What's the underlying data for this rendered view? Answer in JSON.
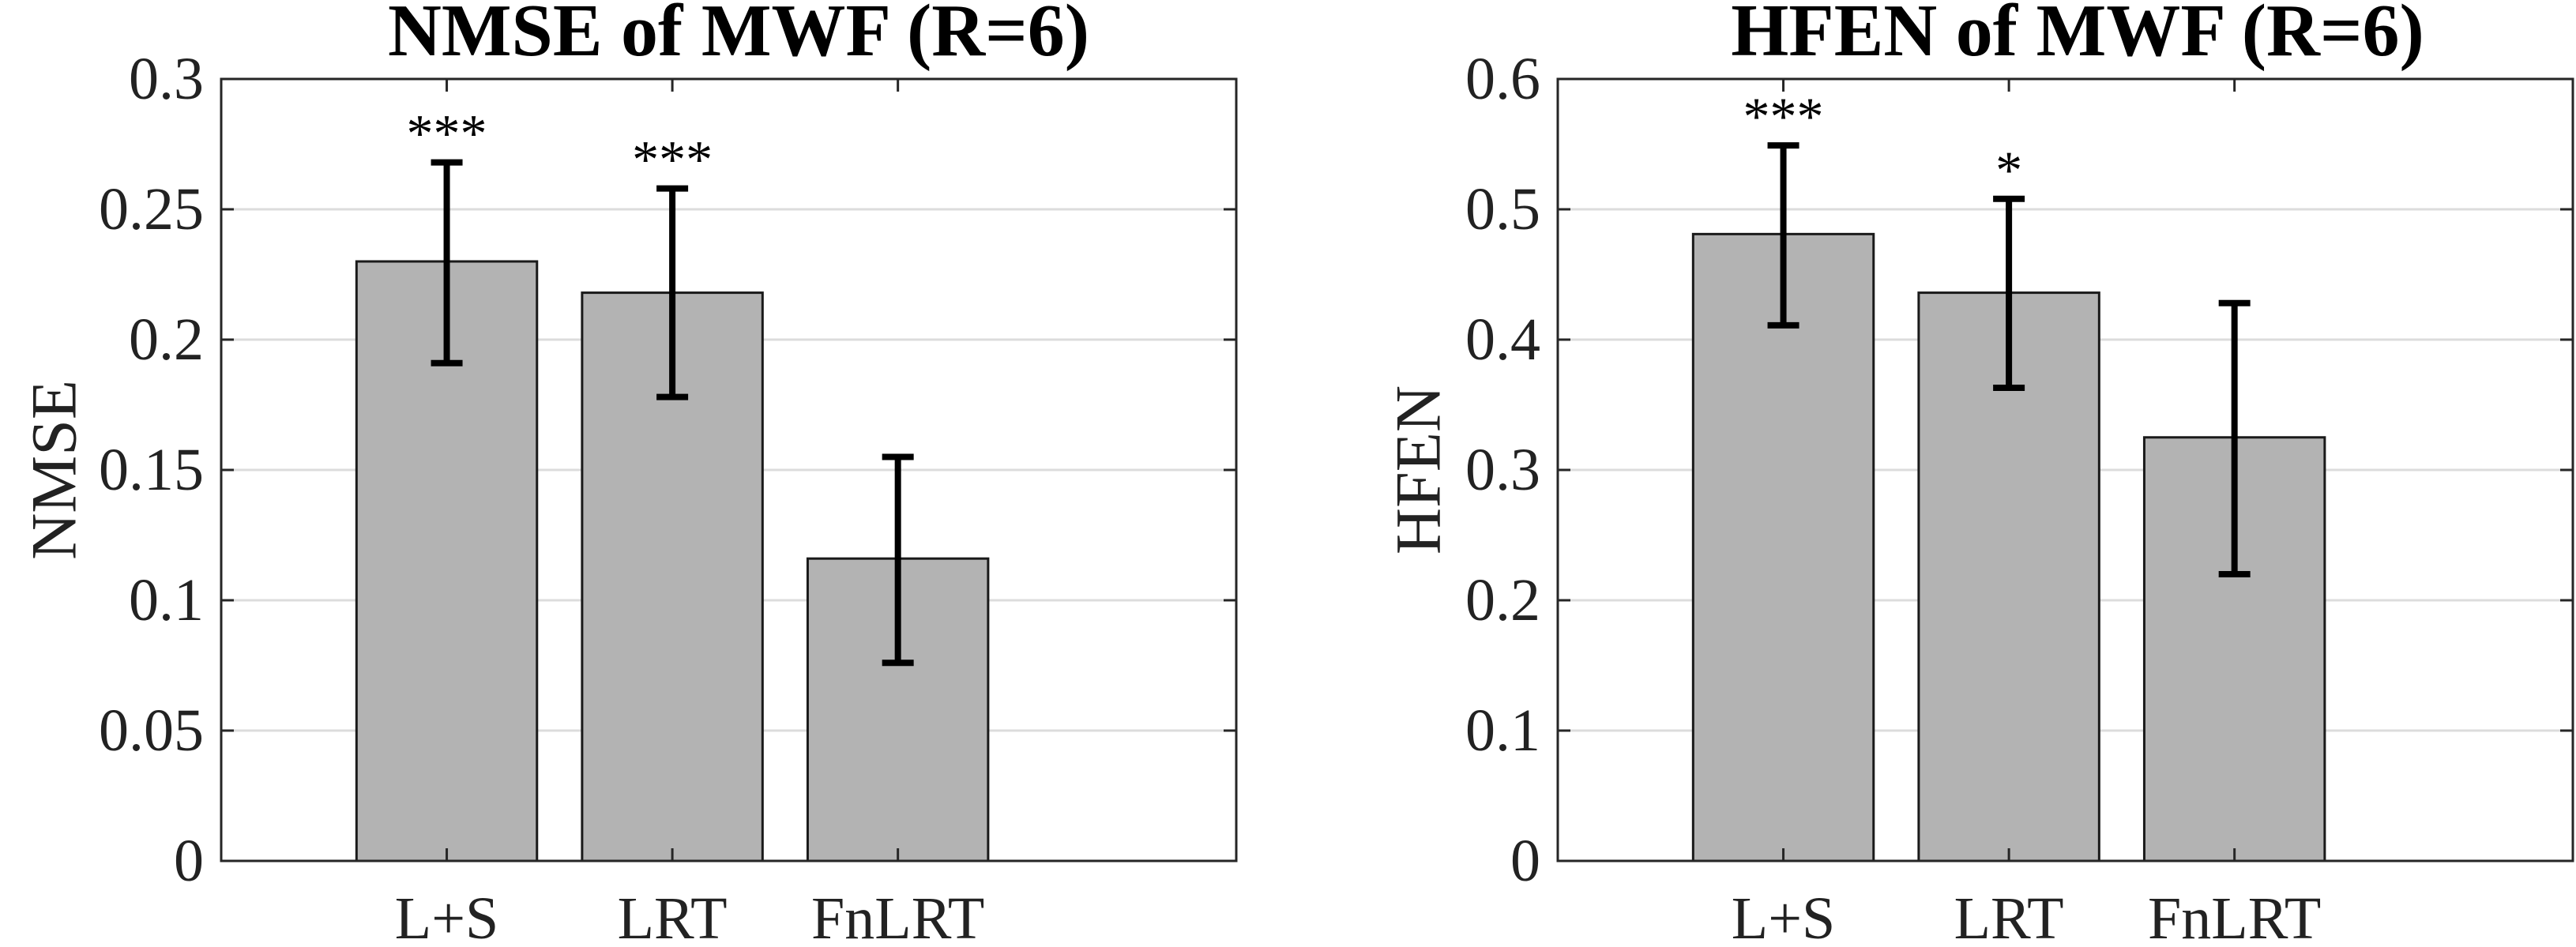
{
  "chart_data": [
    {
      "type": "bar",
      "title": "NMSE of MWF (R=6)",
      "xlabel": "",
      "ylabel": "NMSE",
      "categories": [
        "L+S",
        "LRT",
        "FnLRT"
      ],
      "values": [
        0.23,
        0.218,
        0.116
      ],
      "error_low": [
        0.191,
        0.178,
        0.076
      ],
      "error_high": [
        0.268,
        0.258,
        0.155
      ],
      "significance": [
        "***",
        "***",
        ""
      ],
      "ylim": [
        0,
        0.3
      ],
      "yticks": [
        0,
        0.05,
        0.1,
        0.15,
        0.2,
        0.25,
        0.3
      ],
      "ytick_labels": [
        "0",
        "0.05",
        "0.1",
        "0.15",
        "0.2",
        "0.25",
        "0.3"
      ],
      "xlim": [
        0,
        4.5
      ],
      "grid": true,
      "bar_color": "#b3b3b3"
    },
    {
      "type": "bar",
      "title": "HFEN of MWF (R=6)",
      "xlabel": "",
      "ylabel": "HFEN",
      "categories": [
        "L+S",
        "LRT",
        "FnLRT"
      ],
      "values": [
        0.481,
        0.436,
        0.325
      ],
      "error_low": [
        0.411,
        0.363,
        0.22
      ],
      "error_high": [
        0.549,
        0.508,
        0.428
      ],
      "significance": [
        "***",
        "*",
        ""
      ],
      "ylim": [
        0,
        0.6
      ],
      "yticks": [
        0,
        0.1,
        0.2,
        0.3,
        0.4,
        0.5,
        0.6
      ],
      "ytick_labels": [
        "0",
        "0.1",
        "0.2",
        "0.3",
        "0.4",
        "0.5",
        "0.6"
      ],
      "xlim": [
        0,
        4.5
      ],
      "grid": true,
      "bar_color": "#b3b3b3"
    }
  ]
}
